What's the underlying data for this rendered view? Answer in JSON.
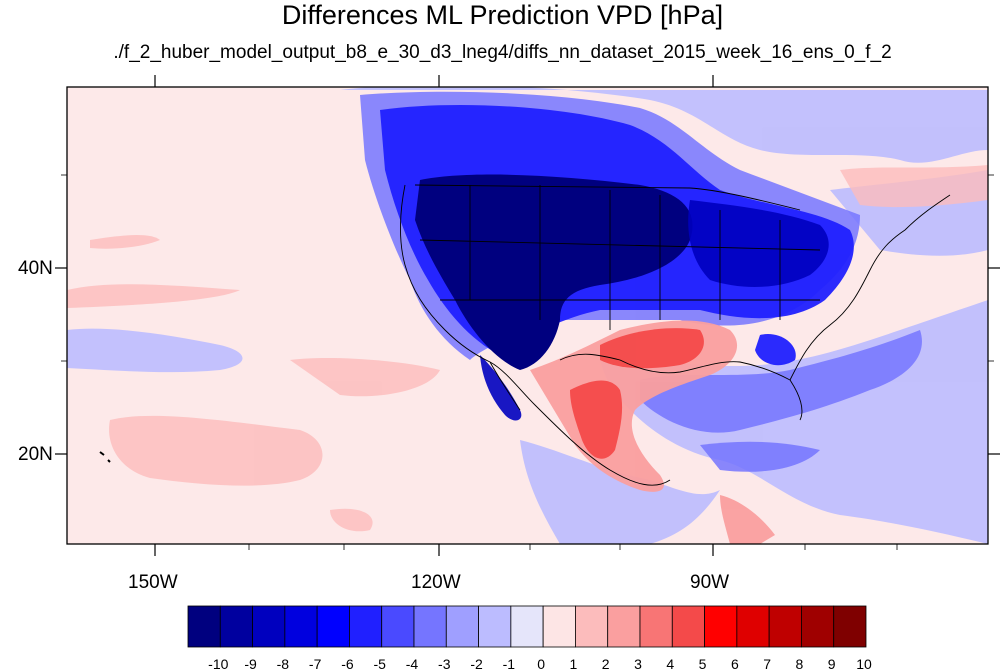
{
  "title": "Differences ML Prediction VPD [hPa]",
  "subtitle": "./f_2_huber_model_output_b8_e_30_d3_lneg4/diffs_nn_dataset_2015_week_16_ens_0_f_2",
  "map": {
    "lat_labels": [
      "40N",
      "20N"
    ],
    "lon_labels": [
      "150W",
      "120W",
      "90W"
    ]
  },
  "colorbar": {
    "labels": [
      "-10",
      "-9",
      "-8",
      "-7",
      "-6",
      "-5",
      "-4",
      "-3",
      "-2",
      "-1",
      "0",
      "1",
      "2",
      "3",
      "4",
      "5",
      "6",
      "7",
      "8",
      "9",
      "10"
    ],
    "colors": [
      "#00007f",
      "#00009f",
      "#0000bf",
      "#0000df",
      "#0000ff",
      "#2020ff",
      "#4a4aff",
      "#7575ff",
      "#9f9fff",
      "#bcbcff",
      "#e5e5fa",
      "#fde5e5",
      "#fcbcbc",
      "#fa9f9f",
      "#f87575",
      "#f44a4a",
      "#ff0000",
      "#df0000",
      "#bf0000",
      "#9f0000",
      "#7f0000"
    ]
  },
  "colors": {
    "ocean_base": "#fde9e9",
    "deep_blue": "#00007f",
    "strong_red": "#f44a4a"
  }
}
